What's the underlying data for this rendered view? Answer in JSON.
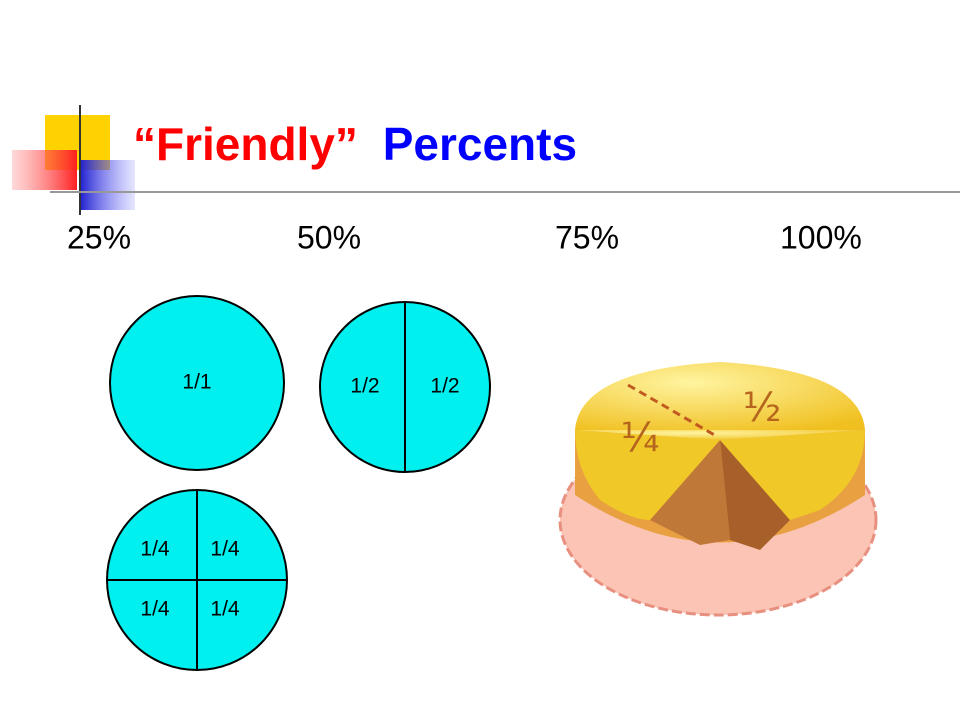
{
  "title": {
    "part1": "“Friendly”",
    "part2": "Percents"
  },
  "percents": [
    "25%",
    "50%",
    "75%",
    "100%"
  ],
  "circles": [
    {
      "labels": [
        "1/1"
      ]
    },
    {
      "labels": [
        "1/2",
        "1/2"
      ]
    },
    {
      "labels": [
        "1/4",
        "1/4",
        "1/4",
        "1/4"
      ]
    }
  ],
  "cake": {
    "labels": [
      "½",
      "¼"
    ]
  }
}
